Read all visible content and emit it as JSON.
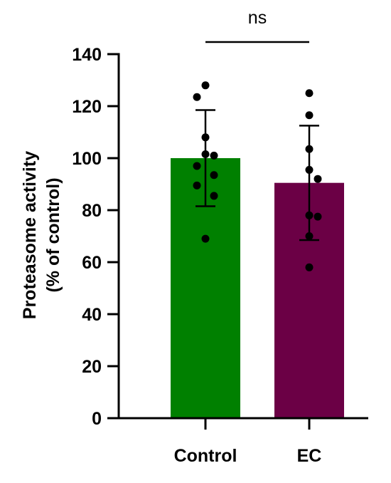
{
  "chart_data": {
    "type": "bar",
    "title": "",
    "xlabel": "",
    "ylabel_lines": [
      "Proteasome activity",
      "(% of control)"
    ],
    "ylim": [
      0,
      140
    ],
    "yticks": [
      0,
      20,
      40,
      60,
      80,
      100,
      120,
      140
    ],
    "categories": [
      "Control",
      "EC"
    ],
    "values": [
      100,
      90.5
    ],
    "error_bars": [
      {
        "upper": 118.5,
        "lower": 81.5
      },
      {
        "upper": 112.5,
        "lower": 68.5
      }
    ],
    "points": [
      [
        128,
        123.5,
        108,
        101.5,
        101,
        97,
        93.5,
        89.5,
        85.5,
        69
      ],
      [
        125,
        116.5,
        103.5,
        95.5,
        92,
        78,
        77.5,
        70,
        58
      ]
    ],
    "significance": {
      "label": "ns",
      "between": [
        "Control",
        "EC"
      ]
    },
    "colors": {
      "Control": "#008000",
      "EC": "#6b0045",
      "points": "#000000",
      "axis": "#000000"
    },
    "grid": false,
    "legend": "none"
  }
}
